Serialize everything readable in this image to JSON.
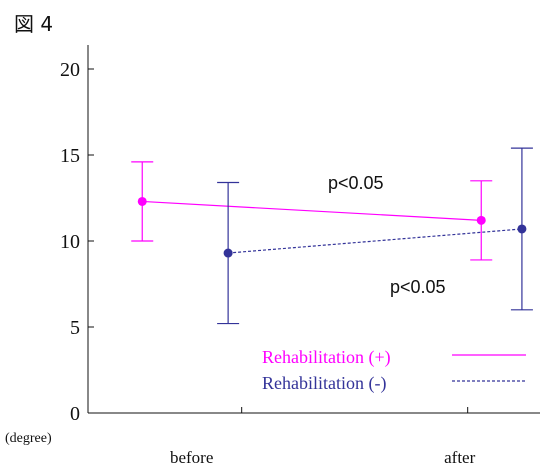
{
  "figure_label": "図 4",
  "chart_data": {
    "type": "line",
    "title": "",
    "xlabel": "",
    "ylabel": "",
    "y_unit": "(degree)",
    "categories": [
      "before",
      "after"
    ],
    "ylim": [
      0,
      20
    ],
    "yticks": [
      0,
      5,
      10,
      15,
      20
    ],
    "grid": false,
    "legend_position": "lower-right",
    "series": [
      {
        "name": "Rehabilitation (+)",
        "color": "#ff00ff",
        "line_style": "solid",
        "x": [
          0.12,
          0.87
        ],
        "values": [
          12.3,
          11.2
        ],
        "error_low": [
          10.0,
          8.9
        ],
        "error_high": [
          14.6,
          13.5
        ]
      },
      {
        "name": "Rehabilitation (-)",
        "color": "#333399",
        "line_style": "dashed",
        "x": [
          0.31,
          0.96
        ],
        "values": [
          9.3,
          10.7
        ],
        "error_low": [
          5.2,
          6.0
        ],
        "error_high": [
          13.4,
          15.4
        ]
      }
    ],
    "annotations": [
      "p<0.05",
      "p<0.05"
    ]
  }
}
